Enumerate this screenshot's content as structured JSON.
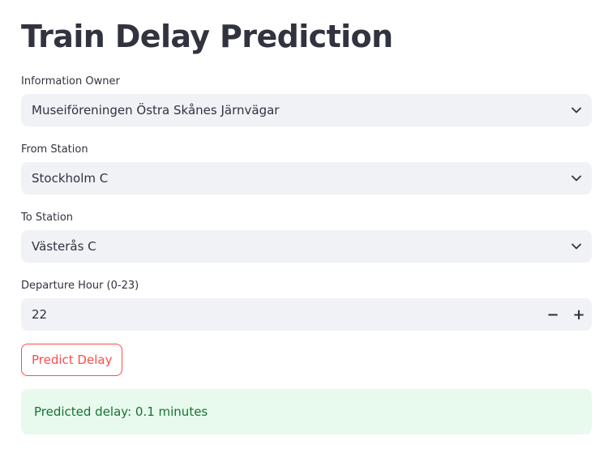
{
  "title": "Train Delay Prediction",
  "fields": {
    "information_owner": {
      "label": "Information Owner",
      "value": "Museiföreningen Östra Skånes Järnvägar"
    },
    "from_station": {
      "label": "From Station",
      "value": "Stockholm C"
    },
    "to_station": {
      "label": "To Station",
      "value": "Västerås C"
    },
    "departure_hour": {
      "label": "Departure Hour (0-23)",
      "value": "22",
      "decrement": "−",
      "increment": "+"
    }
  },
  "predict_button": {
    "label": "Predict Delay"
  },
  "result": {
    "text": "Predicted delay: 0.1 minutes"
  },
  "colors": {
    "accent": "#ff4b4b",
    "input_bg": "#f0f2f6",
    "success_bg": "#e8f9ee",
    "success_text": "#177233",
    "text": "#31333f"
  },
  "icons": {
    "select_chevron": "chevron-down-icon"
  }
}
